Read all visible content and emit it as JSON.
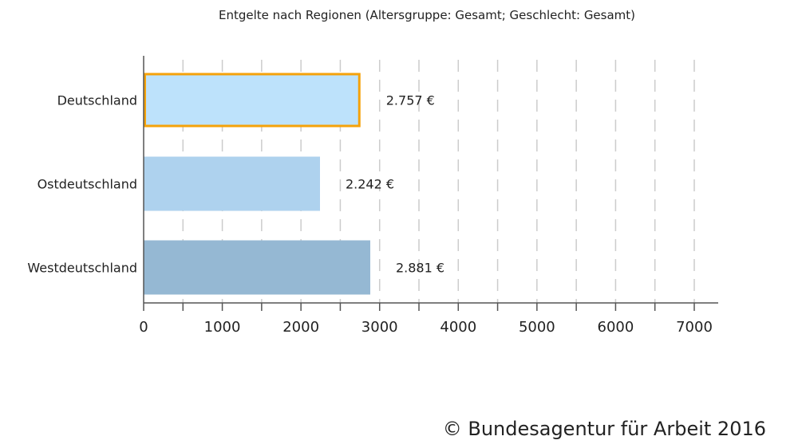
{
  "chart_data": {
    "type": "bar",
    "orientation": "horizontal",
    "title": "Entgelte nach Regionen (Altersgruppe: Gesamt; Geschlecht: Gesamt)",
    "categories": [
      "Deutschland",
      "Ostdeutschland",
      "Westdeutschland"
    ],
    "values": [
      2757,
      2242,
      2881
    ],
    "value_labels": [
      "2.757 €",
      "2.242 €",
      "2.881 €"
    ],
    "xlim": [
      0,
      7000
    ],
    "x_ticks": [
      0,
      1000,
      2000,
      3000,
      4000,
      5000,
      6000,
      7000
    ],
    "tick_labels": [
      "0",
      "1000",
      "2000",
      "3000",
      "4000",
      "5000",
      "6000",
      "7000"
    ],
    "grid": "vertical-dashed",
    "colors": {
      "bar_fills": [
        "#bde2fb",
        "#aed2ee",
        "#95b8d3"
      ],
      "highlight_stroke": "#f5a20a",
      "grid": "#cccccc",
      "axis": "#555555"
    },
    "highlighted_index": 0
  },
  "footer": {
    "copyright": "© Bundesagentur für Arbeit 2016"
  }
}
